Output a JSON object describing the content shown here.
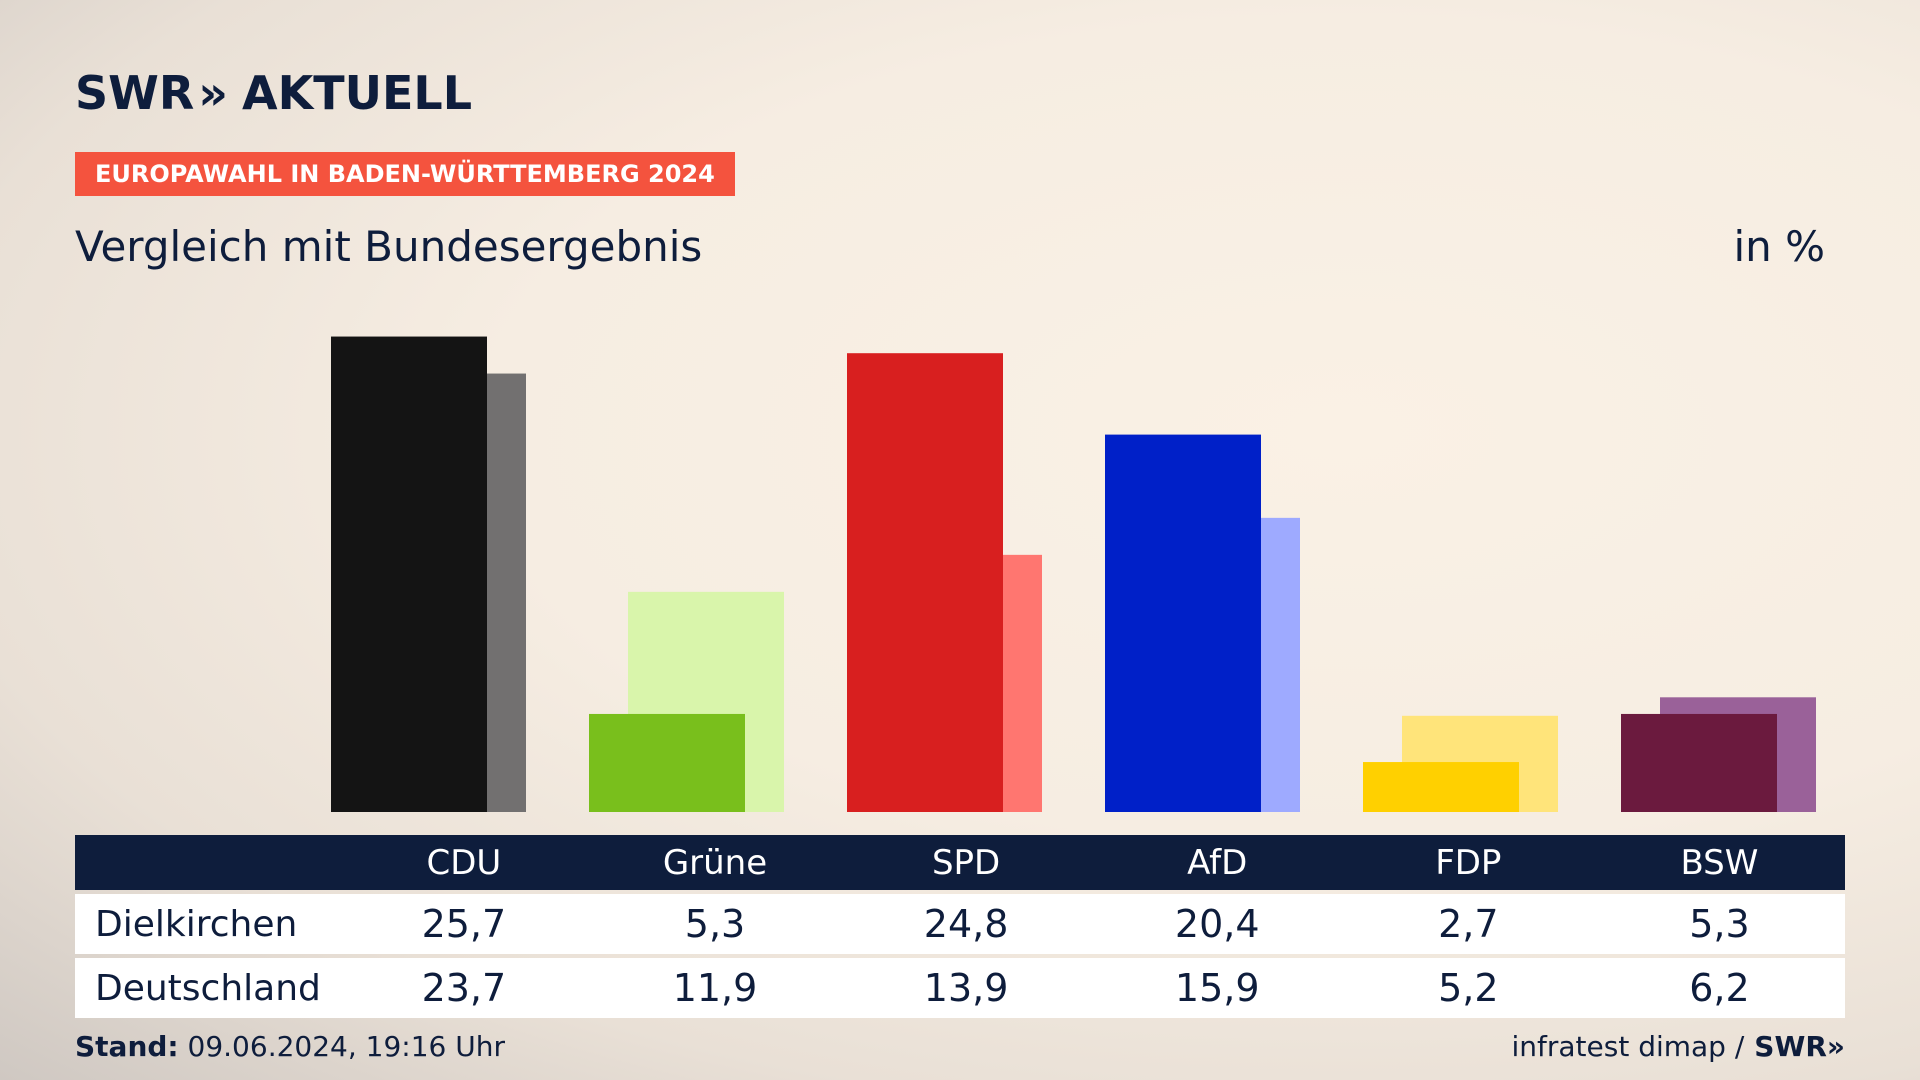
{
  "brand": {
    "logo_text": "SWR",
    "logo_chevrons": "»",
    "logo_suffix": "AKTUELL",
    "footer_logo": "SWR»"
  },
  "header": {
    "tag": "EUROPAWAHL IN BADEN-WÜRTTEMBERG 2024",
    "subtitle": "Vergleich mit Bundesergebnis",
    "unit": "in %"
  },
  "chart_data": {
    "type": "bar",
    "categories": [
      "CDU",
      "Grüne",
      "SPD",
      "AfD",
      "FDP",
      "BSW"
    ],
    "series": [
      {
        "name": "Dielkirchen",
        "values": [
          25.7,
          5.3,
          24.8,
          20.4,
          2.7,
          5.3
        ]
      },
      {
        "name": "Deutschland",
        "values": [
          23.7,
          11.9,
          13.9,
          15.9,
          5.2,
          6.2
        ]
      }
    ],
    "colors": {
      "primary": [
        "#141414",
        "#79bf1c",
        "#d81f1f",
        "#0020c8",
        "#ffd000",
        "#6b1a3e"
      ],
      "secondary": [
        "#727070",
        "#d9f5ab",
        "#ff7670",
        "#9eaaff",
        "#ffe47a",
        "#9a6199"
      ]
    },
    "ylim": [
      0,
      26
    ]
  },
  "table": {
    "header_blank": "",
    "rows_label": [
      "Dielkirchen",
      "Deutschland"
    ]
  },
  "footer": {
    "stand_label": "Stand:",
    "stand_value": "09.06.2024, 19:16 Uhr",
    "source": "infratest dimap /"
  }
}
